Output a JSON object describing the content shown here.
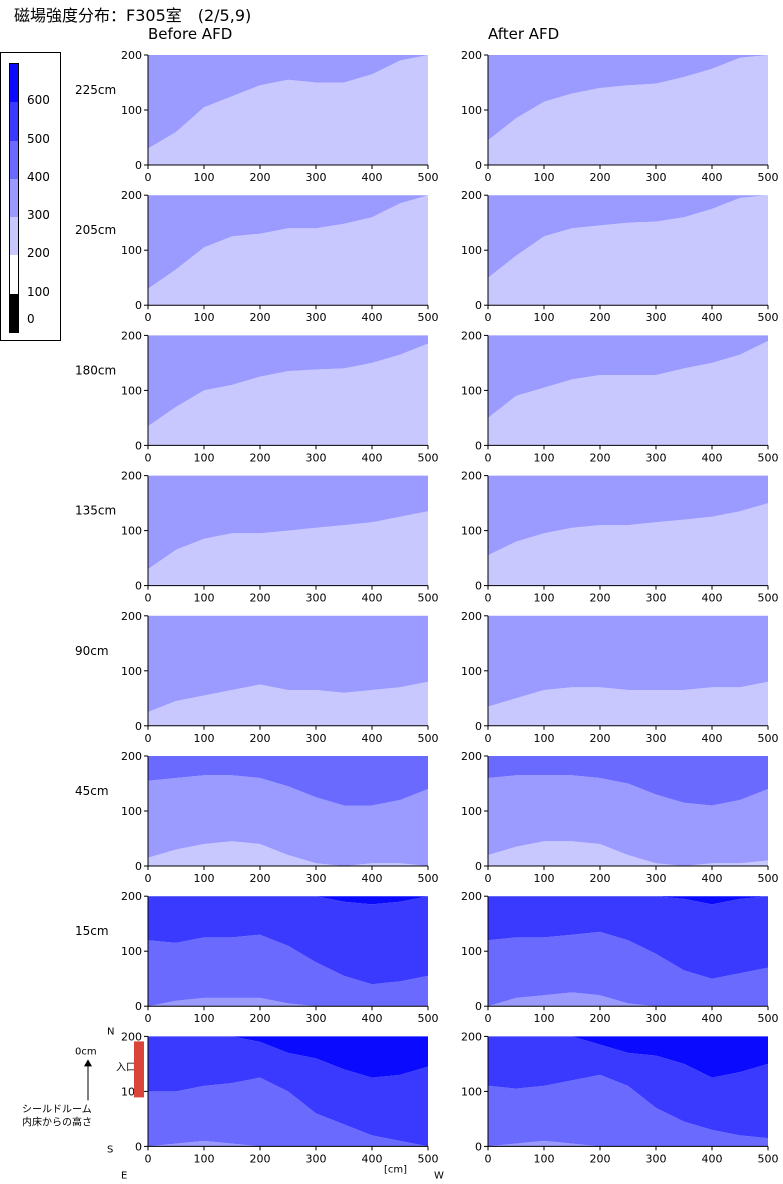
{
  "title": "磁場強度分布：F305室　(2/5,9)",
  "columns": [
    "Before AFD",
    "After AFD"
  ],
  "legend": {
    "bands": [
      {
        "label": "0",
        "color": "#000000"
      },
      {
        "label": "100",
        "color": "#ffffff"
      },
      {
        "label": "200",
        "color": "#c8c8ff"
      },
      {
        "label": "300",
        "color": "#9a9aff"
      },
      {
        "label": "400",
        "color": "#6a6aff"
      },
      {
        "label": "500",
        "color": "#3a3aff"
      },
      {
        "label": "600",
        "color": "#0a0aff"
      }
    ]
  },
  "annotations": {
    "x_unit": "[cm]",
    "east": "E",
    "west": "W",
    "north": "N",
    "south": "S",
    "entrance": "入口",
    "zero_label": "0cm",
    "height_note_1": "シールドルーム",
    "height_note_2": "内床からの高さ"
  },
  "chart_data": {
    "type": "contour",
    "x_ticks": [
      0,
      100,
      200,
      300,
      400,
      500
    ],
    "y_ticks": [
      0,
      100,
      200
    ],
    "xlim": [
      0,
      500
    ],
    "ylim": [
      0,
      200
    ],
    "x_grid": [
      0,
      50,
      100,
      150,
      200,
      250,
      300,
      350,
      400,
      450,
      500
    ],
    "rows": [
      {
        "height_label": "225cm",
        "before": {
          "base": 2,
          "bounds": [
            [
              30,
              60,
              105,
              125,
              145,
              155,
              150,
              150,
              165,
              190,
              200
            ]
          ]
        },
        "after": {
          "base": 2,
          "bounds": [
            [
              45,
              85,
              115,
              130,
              140,
              145,
              148,
              160,
              175,
              195,
              200
            ]
          ]
        }
      },
      {
        "height_label": "205cm",
        "before": {
          "base": 2,
          "bounds": [
            [
              30,
              65,
              105,
              125,
              130,
              140,
              140,
              148,
              160,
              185,
              200
            ]
          ]
        },
        "after": {
          "base": 2,
          "bounds": [
            [
              50,
              90,
              125,
              140,
              145,
              150,
              152,
              160,
              175,
              195,
              200
            ]
          ]
        }
      },
      {
        "height_label": "180cm",
        "before": {
          "base": 2,
          "bounds": [
            [
              35,
              70,
              100,
              110,
              125,
              135,
              138,
              140,
              150,
              165,
              185
            ]
          ]
        },
        "after": {
          "base": 2,
          "bounds": [
            [
              50,
              90,
              105,
              120,
              128,
              128,
              128,
              140,
              150,
              165,
              190
            ]
          ]
        }
      },
      {
        "height_label": "135cm",
        "before": {
          "base": 2,
          "bounds": [
            [
              30,
              65,
              85,
              95,
              95,
              100,
              105,
              110,
              115,
              125,
              135
            ]
          ]
        },
        "after": {
          "base": 2,
          "bounds": [
            [
              55,
              80,
              95,
              105,
              110,
              110,
              115,
              120,
              125,
              135,
              150
            ]
          ]
        }
      },
      {
        "height_label": "90cm",
        "before": {
          "base": 2,
          "bounds": [
            [
              25,
              45,
              55,
              65,
              75,
              65,
              65,
              60,
              65,
              70,
              80
            ]
          ]
        },
        "after": {
          "base": 2,
          "bounds": [
            [
              35,
              50,
              65,
              70,
              70,
              65,
              65,
              65,
              70,
              70,
              80
            ]
          ]
        }
      },
      {
        "height_label": "45cm",
        "before": {
          "base": 2,
          "bounds": [
            [
              15,
              30,
              40,
              45,
              40,
              20,
              5,
              0,
              5,
              5,
              0
            ],
            [
              155,
              160,
              165,
              165,
              160,
              145,
              125,
              110,
              110,
              120,
              140
            ]
          ]
        },
        "after": {
          "base": 2,
          "bounds": [
            [
              20,
              35,
              45,
              45,
              40,
              20,
              5,
              0,
              5,
              5,
              10
            ],
            [
              160,
              165,
              165,
              165,
              160,
              150,
              130,
              115,
              110,
              120,
              140
            ]
          ]
        }
      },
      {
        "height_label": "15cm",
        "before": {
          "base": 3,
          "bounds": [
            [
              0,
              10,
              15,
              15,
              15,
              5,
              0,
              0,
              0,
              0,
              0
            ],
            [
              120,
              115,
              125,
              125,
              130,
              110,
              80,
              55,
              40,
              45,
              55
            ],
            [
              200,
              200,
              200,
              200,
              200,
              200,
              200,
              190,
              185,
              190,
              200
            ]
          ]
        },
        "after": {
          "base": 3,
          "bounds": [
            [
              0,
              15,
              20,
              25,
              20,
              5,
              0,
              0,
              0,
              0,
              0
            ],
            [
              120,
              125,
              125,
              130,
              135,
              120,
              95,
              65,
              50,
              60,
              70
            ],
            [
              200,
              200,
              200,
              200,
              200,
              200,
              200,
              195,
              185,
              195,
              200
            ]
          ]
        }
      },
      {
        "height_label": "",
        "before": {
          "base": 3,
          "bounds": [
            [
              0,
              5,
              10,
              5,
              0,
              0,
              0,
              0,
              0,
              0,
              0
            ],
            [
              100,
              100,
              110,
              115,
              125,
              100,
              60,
              40,
              20,
              10,
              0
            ],
            [
              200,
              200,
              200,
              200,
              190,
              170,
              160,
              140,
              125,
              130,
              145
            ]
          ]
        },
        "after": {
          "base": 3,
          "bounds": [
            [
              0,
              5,
              10,
              5,
              0,
              0,
              0,
              0,
              0,
              0,
              0
            ],
            [
              110,
              105,
              110,
              120,
              130,
              110,
              70,
              45,
              30,
              20,
              15
            ],
            [
              200,
              200,
              200,
              200,
              185,
              170,
              165,
              150,
              125,
              135,
              150
            ]
          ]
        }
      }
    ]
  }
}
